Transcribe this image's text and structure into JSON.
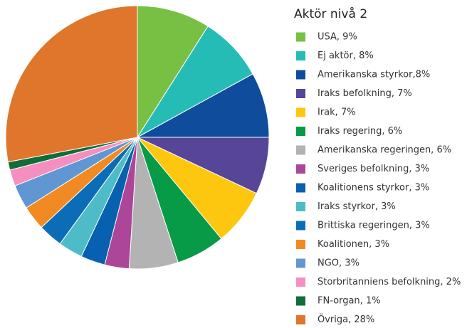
{
  "chart_data": {
    "type": "pie",
    "title": "Aktör nivå 2",
    "categories": [
      "USA, 9%",
      "Ej aktör, 8%",
      "Amerikanska styrkor,8%",
      "Iraks befolkning, 7%",
      "Irak, 7%",
      "Iraks regering, 6%",
      "Amerikanska regeringen, 6%",
      "Sveriges befolkning, 3%",
      "Koalitionens styrkor, 3%",
      "Iraks styrkor, 3%",
      "Brittiska regeringen, 3%",
      "Koalitionen, 3%",
      "NGO, 3%",
      "Storbritanniens befolkning, 2%",
      "FN-organ, 1%",
      "Övriga, 28%"
    ],
    "values": [
      9,
      8,
      8,
      7,
      7,
      6,
      6,
      3,
      3,
      3,
      3,
      3,
      3,
      2,
      1,
      28
    ],
    "colors": [
      "#77c044",
      "#26bcb6",
      "#0f4c9c",
      "#574597",
      "#fec70f",
      "#079a47",
      "#b3b3b3",
      "#ab4698",
      "#0860b0",
      "#4ebcc6",
      "#0b6db8",
      "#f28a24",
      "#6097d2",
      "#f48fc0",
      "#126c39",
      "#e0762b"
    ],
    "legend": "right"
  }
}
